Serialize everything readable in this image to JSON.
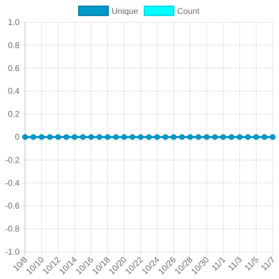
{
  "chart_data": {
    "type": "line",
    "x": [
      "10/8",
      "10/9",
      "10/10",
      "10/11",
      "10/12",
      "10/13",
      "10/14",
      "10/15",
      "10/16",
      "10/17",
      "10/18",
      "10/19",
      "10/20",
      "10/21",
      "10/22",
      "10/23",
      "10/24",
      "10/25",
      "10/26",
      "10/27",
      "10/28",
      "10/29",
      "10/30",
      "10/31",
      "11/1",
      "11/2",
      "11/3",
      "11/4",
      "11/5",
      "11/6",
      "11/7"
    ],
    "x_tick_labels": [
      "10/8",
      "10/10",
      "10/12",
      "10/14",
      "10/16",
      "10/18",
      "10/20",
      "10/22",
      "10/24",
      "10/26",
      "10/28",
      "10/30",
      "11/1",
      "11/3",
      "11/5",
      "11/7"
    ],
    "y_ticks": [
      "1.0",
      "0.8",
      "0.6",
      "0.4",
      "0.2",
      "0",
      "-0.2",
      "-0.4",
      "-0.6",
      "-0.8",
      "-1.0"
    ],
    "ylim": [
      -1.0,
      1.0
    ],
    "grid": true,
    "legend_position": "top",
    "series": [
      {
        "name": "Unique",
        "color": "#0099cc",
        "values": [
          0,
          0,
          0,
          0,
          0,
          0,
          0,
          0,
          0,
          0,
          0,
          0,
          0,
          0,
          0,
          0,
          0,
          0,
          0,
          0,
          0,
          0,
          0,
          0,
          0,
          0,
          0,
          0,
          0,
          0,
          0
        ]
      },
      {
        "name": "Count",
        "color": "#00ffff",
        "values": [
          0,
          0,
          0,
          0,
          0,
          0,
          0,
          0,
          0,
          0,
          0,
          0,
          0,
          0,
          0,
          0,
          0,
          0,
          0,
          0,
          0,
          0,
          0,
          0,
          0,
          0,
          0,
          0,
          0,
          0,
          0
        ]
      }
    ]
  }
}
